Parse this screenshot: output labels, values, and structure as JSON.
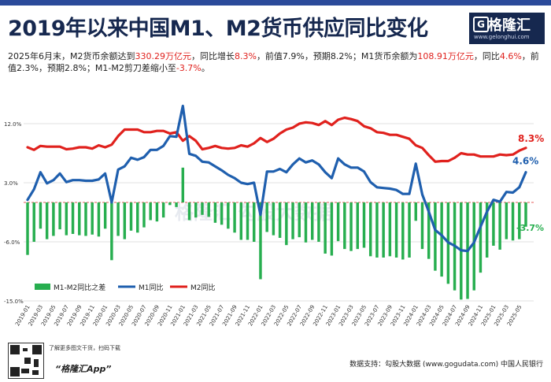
{
  "header": {
    "title": "2019年以来中国M1、M2货币供应同比变化",
    "subtitle_parts": [
      {
        "text": "2025年6月末，M2货币余额达到",
        "red": false
      },
      {
        "text": "330.29万亿元",
        "red": true
      },
      {
        "text": "，同比增长",
        "red": false
      },
      {
        "text": "8.3%",
        "red": true
      },
      {
        "text": "，前值7.9%，预期8.2%；M1货币余额为",
        "red": false
      },
      {
        "text": "108.91万亿元",
        "red": true
      },
      {
        "text": "，同比",
        "red": false
      },
      {
        "text": "4.6%",
        "red": true
      },
      {
        "text": "，前值2.3%，预期2.8%；M1-M2剪刀差缩小至",
        "red": false
      },
      {
        "text": "-3.7%",
        "red": true
      },
      {
        "text": "。",
        "red": false
      }
    ]
  },
  "logo": {
    "glyph": "G",
    "name": "格隆汇",
    "url": "www.gelonghui.com"
  },
  "watermark": "格隆汇 勾股大数据",
  "footer": {
    "promo": "了解更多图文干货，扫码下载",
    "app": "“格隆汇App”",
    "source": "数据支持：勾股大数据 (www.gogudata.com) 中国人民银行"
  },
  "colors": {
    "m1": "#1f5fae",
    "m2": "#e0211d",
    "gap": "#27ae4f",
    "title": "#16284f"
  },
  "chart_data": {
    "type": "line+bar",
    "ylim": [
      -15,
      15
    ],
    "yticks": [
      12,
      3,
      -6,
      -15
    ],
    "ytick_labels": [
      "12.0%",
      "3.0%",
      "-6.0%",
      "-15.0%"
    ],
    "x_start": "2019-01",
    "x_tick_labels": [
      "2019-01",
      "2019-03",
      "2019-05",
      "2019-07",
      "2019-09",
      "2019-11",
      "2020-01",
      "2020-03",
      "2020-05",
      "2020-07",
      "2020-09",
      "2020-11",
      "2021-01",
      "2021-03",
      "2021-05",
      "2021-07",
      "2021-09",
      "2021-11",
      "2022-01",
      "2022-03",
      "2022-05",
      "2022-07",
      "2022-09",
      "2022-11",
      "2023-01",
      "2023-03",
      "2023-05",
      "2023-07",
      "2023-09",
      "2023-11",
      "2024-01",
      "2024-03",
      "2024-05",
      "2024-07",
      "2024-09",
      "2024-11",
      "2025-01",
      "2025-03",
      "2025-05"
    ],
    "legend": [
      "M1-M2同比之差",
      "M1同比",
      "M2同比"
    ],
    "end_labels": {
      "m1": "4.6%",
      "m2": "8.3%",
      "gap": "-3.7%"
    },
    "series": [
      {
        "name": "M1同比",
        "values": [
          0.4,
          2.0,
          4.6,
          2.9,
          3.4,
          4.4,
          3.1,
          3.4,
          3.4,
          3.3,
          3.3,
          3.5,
          4.4,
          0.0,
          5.0,
          5.5,
          6.8,
          6.5,
          6.9,
          8.0,
          8.0,
          8.6,
          10.1,
          10.0,
          14.7,
          7.4,
          7.1,
          6.2,
          6.1,
          5.5,
          4.9,
          4.2,
          3.7,
          3.0,
          2.8,
          3.0,
          -1.9,
          4.7,
          4.7,
          5.1,
          4.6,
          5.8,
          6.7,
          6.1,
          6.4,
          5.8,
          4.6,
          3.7,
          6.7,
          5.8,
          5.3,
          5.3,
          4.7,
          3.1,
          2.3,
          2.2,
          2.1,
          1.9,
          1.3,
          1.3,
          5.9,
          1.2,
          -1.4,
          -4.2,
          -5.0,
          -6.1,
          -6.6,
          -7.3,
          -7.4,
          -6.1,
          -3.7,
          -1.4,
          0.4,
          0.1,
          1.6,
          1.5,
          2.3,
          4.6
        ]
      },
      {
        "name": "M2同比",
        "values": [
          8.4,
          8.0,
          8.6,
          8.5,
          8.5,
          8.5,
          8.1,
          8.2,
          8.4,
          8.4,
          8.2,
          8.7,
          8.4,
          8.8,
          10.1,
          11.1,
          11.1,
          11.1,
          10.7,
          10.7,
          10.9,
          10.9,
          10.5,
          10.7,
          9.4,
          10.1,
          9.4,
          8.1,
          8.3,
          8.6,
          8.3,
          8.2,
          8.3,
          8.7,
          8.5,
          9.0,
          9.8,
          9.2,
          9.7,
          10.5,
          11.1,
          11.4,
          12.0,
          12.2,
          12.1,
          11.8,
          12.4,
          11.8,
          12.6,
          12.9,
          12.7,
          12.4,
          11.6,
          11.3,
          10.7,
          10.6,
          10.3,
          10.3,
          10.0,
          9.7,
          8.7,
          8.3,
          7.2,
          6.2,
          6.3,
          6.3,
          6.8,
          7.5,
          7.3,
          7.3,
          7.0,
          7.0,
          7.0,
          7.3,
          7.2,
          7.3,
          7.9,
          8.3
        ]
      },
      {
        "name": "M1-M2同比之差",
        "values": [
          -8.0,
          -6.0,
          -4.0,
          -5.6,
          -5.1,
          -4.1,
          -5.0,
          -4.8,
          -5.0,
          -5.1,
          -4.9,
          -5.2,
          -4.0,
          -8.8,
          -5.1,
          -5.6,
          -4.3,
          -4.6,
          -3.8,
          -2.7,
          -2.9,
          -2.3,
          -0.4,
          -0.7,
          5.3,
          -2.7,
          -2.3,
          -1.9,
          -2.2,
          -3.1,
          -3.4,
          -4.0,
          -4.6,
          -5.7,
          -5.7,
          -6.0,
          -11.7,
          -4.5,
          -5.0,
          -5.4,
          -6.5,
          -5.6,
          -5.3,
          -6.1,
          -5.7,
          -6.0,
          -7.8,
          -8.1,
          -5.9,
          -7.1,
          -7.4,
          -7.1,
          -6.9,
          -8.2,
          -8.4,
          -8.4,
          -8.2,
          -8.4,
          -8.7,
          -8.4,
          -2.8,
          -7.1,
          -8.6,
          -10.4,
          -11.3,
          -12.4,
          -13.4,
          -14.8,
          -14.7,
          -13.4,
          -10.7,
          -8.4,
          -6.6,
          -7.2,
          -5.6,
          -5.8,
          -5.6,
          -3.7
        ]
      }
    ]
  }
}
